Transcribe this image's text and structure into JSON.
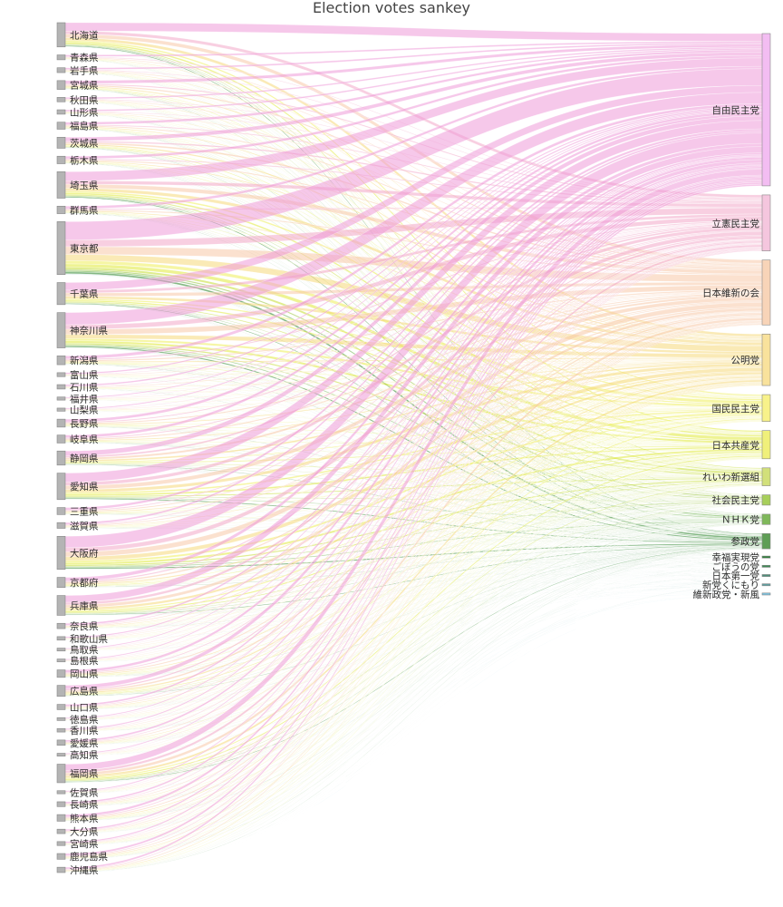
{
  "chart_data": {
    "type": "sankey",
    "title": "Election votes sankey",
    "sources": [
      {
        "name": "北海道",
        "weight": 5.5
      },
      {
        "name": "青森県",
        "weight": 1.1
      },
      {
        "name": "岩手県",
        "weight": 1.1
      },
      {
        "name": "宮城県",
        "weight": 2.0
      },
      {
        "name": "秋田県",
        "weight": 1.0
      },
      {
        "name": "山形県",
        "weight": 1.0
      },
      {
        "name": "福島県",
        "weight": 1.6
      },
      {
        "name": "茨城県",
        "weight": 2.5
      },
      {
        "name": "栃木県",
        "weight": 1.7
      },
      {
        "name": "埼玉県",
        "weight": 6.0
      },
      {
        "name": "群馬県",
        "weight": 1.7
      },
      {
        "name": "東京都",
        "weight": 12.0
      },
      {
        "name": "千葉県",
        "weight": 5.0
      },
      {
        "name": "神奈川県",
        "weight": 8.0
      },
      {
        "name": "新潟県",
        "weight": 2.0
      },
      {
        "name": "富山県",
        "weight": 0.9
      },
      {
        "name": "石川県",
        "weight": 1.0
      },
      {
        "name": "福井県",
        "weight": 0.7
      },
      {
        "name": "山梨県",
        "weight": 0.7
      },
      {
        "name": "長野県",
        "weight": 1.8
      },
      {
        "name": "岐阜県",
        "weight": 1.8
      },
      {
        "name": "静岡県",
        "weight": 3.2
      },
      {
        "name": "愛知県",
        "weight": 6.0
      },
      {
        "name": "三重県",
        "weight": 1.6
      },
      {
        "name": "滋賀県",
        "weight": 1.3
      },
      {
        "name": "大阪府",
        "weight": 7.5
      },
      {
        "name": "京都府",
        "weight": 2.3
      },
      {
        "name": "兵庫県",
        "weight": 4.5
      },
      {
        "name": "奈良県",
        "weight": 1.2
      },
      {
        "name": "和歌山県",
        "weight": 0.8
      },
      {
        "name": "鳥取県",
        "weight": 0.5
      },
      {
        "name": "島根県",
        "weight": 0.6
      },
      {
        "name": "岡山県",
        "weight": 1.7
      },
      {
        "name": "広島県",
        "weight": 2.5
      },
      {
        "name": "山口県",
        "weight": 1.2
      },
      {
        "name": "徳島県",
        "weight": 0.6
      },
      {
        "name": "香川県",
        "weight": 0.8
      },
      {
        "name": "愛媛県",
        "weight": 1.2
      },
      {
        "name": "高知県",
        "weight": 0.6
      },
      {
        "name": "福岡県",
        "weight": 4.2
      },
      {
        "name": "佐賀県",
        "weight": 0.7
      },
      {
        "name": "長崎県",
        "weight": 1.1
      },
      {
        "name": "熊本県",
        "weight": 1.5
      },
      {
        "name": "大分県",
        "weight": 1.0
      },
      {
        "name": "宮崎県",
        "weight": 0.9
      },
      {
        "name": "鹿児島県",
        "weight": 1.3
      },
      {
        "name": "沖縄県",
        "weight": 1.2
      }
    ],
    "targets": [
      {
        "name": "自由民主党",
        "weight": 34.0,
        "color": "#f3bdf2"
      },
      {
        "name": "立憲民主党",
        "weight": 12.5,
        "color": "#f5c6de"
      },
      {
        "name": "日本維新の会",
        "weight": 14.5,
        "color": "#f8d4b8"
      },
      {
        "name": "公明党",
        "weight": 11.5,
        "color": "#f9e29c"
      },
      {
        "name": "国民民主党",
        "weight": 6.0,
        "color": "#f8f28a"
      },
      {
        "name": "日本共産党",
        "weight": 6.3,
        "color": "#f0f07a"
      },
      {
        "name": "れいわ新選組",
        "weight": 4.0,
        "color": "#d2e07a"
      },
      {
        "name": "社会民主党",
        "weight": 2.3,
        "color": "#a7cf5a"
      },
      {
        "name": "ＮＨＫ党",
        "weight": 2.3,
        "color": "#7fb85a"
      },
      {
        "name": "参政党",
        "weight": 3.4,
        "color": "#5e9e55"
      },
      {
        "name": "幸福実現党",
        "weight": 0.3,
        "color": "#2f7d3a"
      },
      {
        "name": "ごぼうの党",
        "weight": 0.3,
        "color": "#3e8a55"
      },
      {
        "name": "日本第一党",
        "weight": 0.3,
        "color": "#4f8f7a"
      },
      {
        "name": "新党くにもり",
        "weight": 0.3,
        "color": "#5f9fa0"
      },
      {
        "name": "維新政党・新風",
        "weight": 0.3,
        "color": "#7ec4e0"
      }
    ],
    "flows": "every prefecture (source) flows into every party (target); flow size = source weight × target share",
    "link_colors": [
      "#ef9ad8",
      "#f3a8c8",
      "#f7c9a8",
      "#f5d97a",
      "#eeee5a",
      "#e0ea3a",
      "#c5dc30",
      "#8fc02c",
      "#5aa834",
      "#1f7d1f",
      "#1a7a2a",
      "#2a8a4a",
      "#3a8f6a",
      "#4a9a8a",
      "#7ac8e0"
    ]
  }
}
